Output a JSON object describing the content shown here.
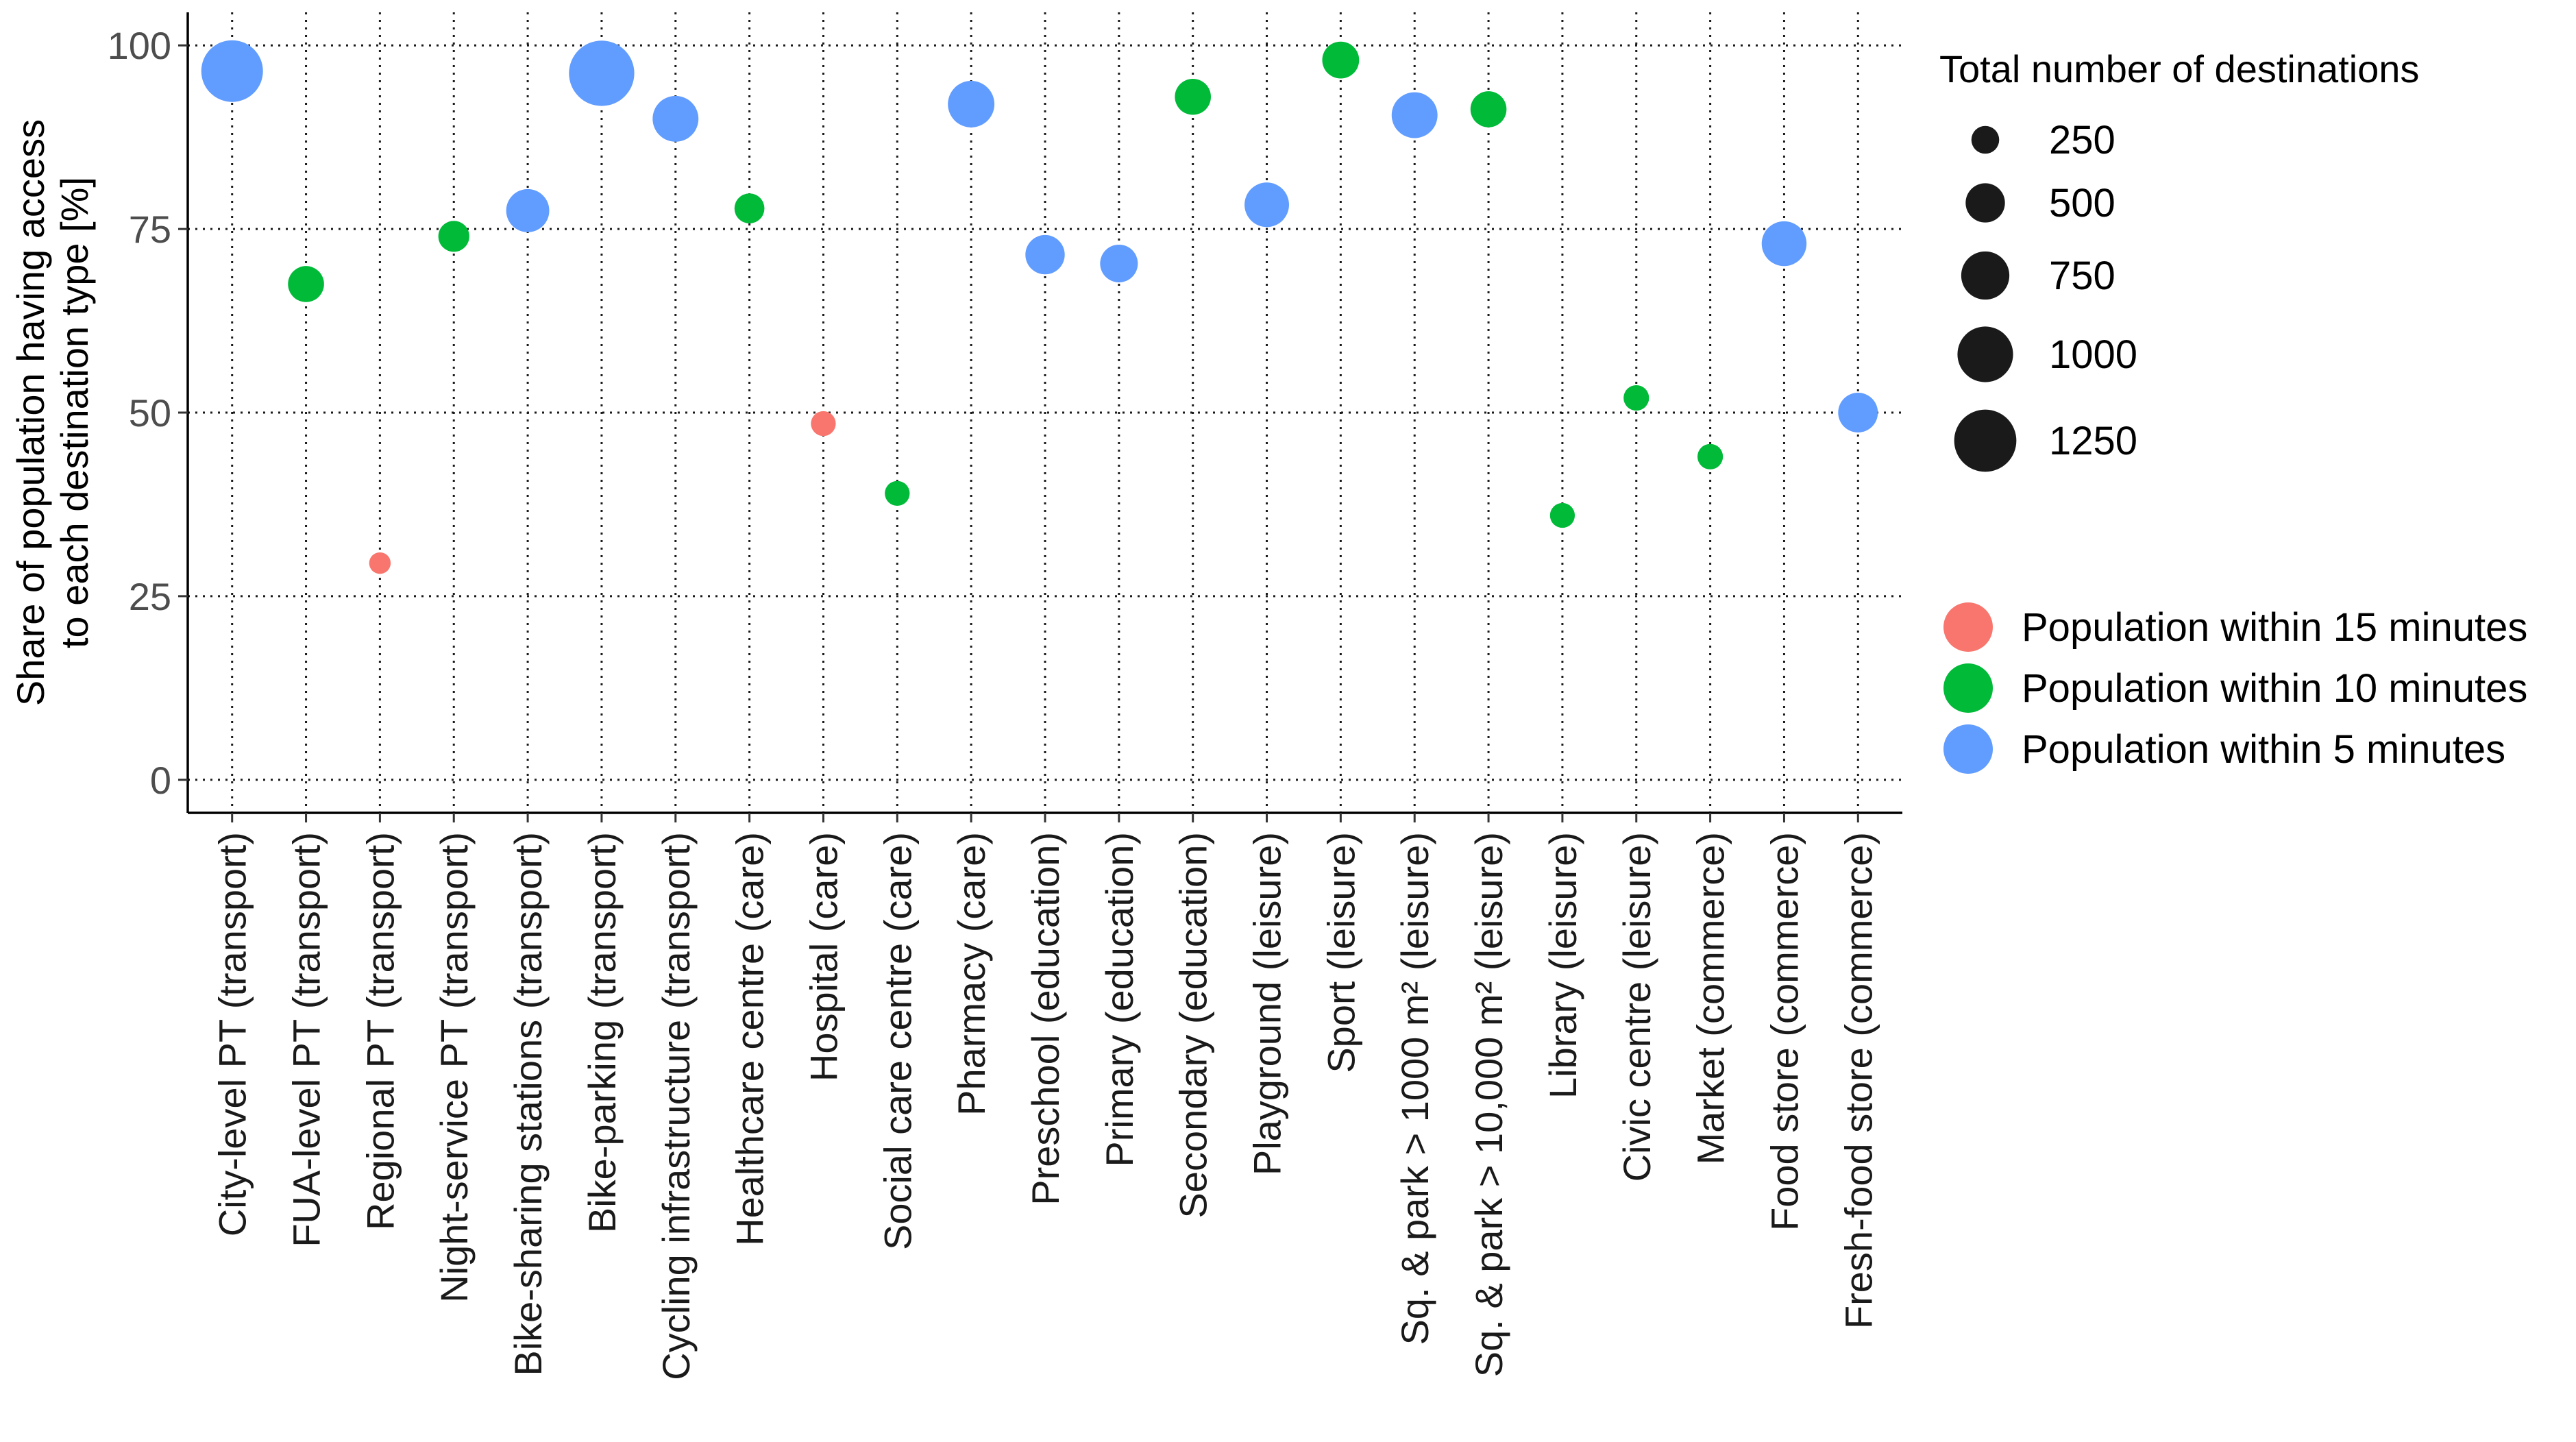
{
  "chart_data": {
    "type": "scatter",
    "title": "",
    "xlabel": "",
    "ylabel_lines": [
      "Share of population having access",
      "to each destination type [%]"
    ],
    "ylim": [
      -4.5,
      104.5
    ],
    "y_ticks": [
      0,
      25,
      50,
      75,
      100
    ],
    "grid": true,
    "categories": [
      "City-level PT (transport)",
      "FUA-level PT (transport)",
      "Regional PT (transport)",
      "Night-service PT (transport)",
      "Bike-sharing stations (transport)",
      "Bike-parking (transport)",
      "Cycling infrastructure (transport)",
      "Healthcare centre (care)",
      "Hospital (care)",
      "Social care centre (care)",
      "Pharmacy (care)",
      "Preschool (education)",
      "Primary (education)",
      "Secondary (education)",
      "Playground (leisure)",
      "Sport (leisure)",
      "Sq. & park > 1000 m² (leisure)",
      "Sq. & park > 10,000 m² (leisure)",
      "Library (leisure)",
      "Civic centre (leisure)",
      "Market (commerce)",
      "Food store (commerce)",
      "Fresh-food store (commerce)"
    ],
    "series": [
      {
        "name": "Population within 15 minutes",
        "color": "#F8766D"
      },
      {
        "name": "Population within 10 minutes",
        "color": "#00BA38"
      },
      {
        "name": "Population within 5 minutes",
        "color": "#619CFF"
      }
    ],
    "points": [
      {
        "category": "City-level PT (transport)",
        "series": "Population within 5 minutes",
        "y": 96.5,
        "size": 1230
      },
      {
        "category": "FUA-level PT (transport)",
        "series": "Population within 10 minutes",
        "y": 67.5,
        "size": 420
      },
      {
        "category": "Regional PT (transport)",
        "series": "Population within 15 minutes",
        "y": 29.5,
        "size": 150
      },
      {
        "category": "Night-service PT (transport)",
        "series": "Population within 10 minutes",
        "y": 74,
        "size": 310
      },
      {
        "category": "Bike-sharing stations (transport)",
        "series": "Population within 5 minutes",
        "y": 77.5,
        "size": 600
      },
      {
        "category": "Bike-parking (transport)",
        "series": "Population within 5 minutes",
        "y": 96.2,
        "size": 1380
      },
      {
        "category": "Cycling infrastructure (transport)",
        "series": "Population within 5 minutes",
        "y": 90,
        "size": 680
      },
      {
        "category": "Healthcare centre (care)",
        "series": "Population within 10 minutes",
        "y": 77.8,
        "size": 290
      },
      {
        "category": "Hospital (care)",
        "series": "Population within 15 minutes",
        "y": 48.5,
        "size": 200
      },
      {
        "category": "Social care centre (care)",
        "series": "Population within 10 minutes",
        "y": 39,
        "size": 200
      },
      {
        "category": "Pharmacy (care)",
        "series": "Population within 5 minutes",
        "y": 92,
        "size": 700
      },
      {
        "category": "Preschool (education)",
        "series": "Population within 5 minutes",
        "y": 71.5,
        "size": 500
      },
      {
        "category": "Primary (education)",
        "series": "Population within 5 minutes",
        "y": 70.3,
        "size": 460
      },
      {
        "category": "Secondary (education)",
        "series": "Population within 10 minutes",
        "y": 93,
        "size": 420
      },
      {
        "category": "Playground (leisure)",
        "series": "Population within 5 minutes",
        "y": 78.3,
        "size": 640
      },
      {
        "category": "Sport (leisure)",
        "series": "Population within 10 minutes",
        "y": 98,
        "size": 440
      },
      {
        "category": "Sq. & park > 1000 m² (leisure)",
        "series": "Population within 5 minutes",
        "y": 90.5,
        "size": 680
      },
      {
        "category": "Sq. & park > 10,000 m² (leisure)",
        "series": "Population within 10 minutes",
        "y": 91.3,
        "size": 420
      },
      {
        "category": "Library (leisure)",
        "series": "Population within 10 minutes",
        "y": 36,
        "size": 200
      },
      {
        "category": "Civic centre (leisure)",
        "series": "Population within 10 minutes",
        "y": 52,
        "size": 210
      },
      {
        "category": "Market (commerce)",
        "series": "Population within 10 minutes",
        "y": 44,
        "size": 210
      },
      {
        "category": "Food store (commerce)",
        "series": "Population within 5 minutes",
        "y": 73,
        "size": 650
      },
      {
        "category": "Fresh-food store (commerce)",
        "series": "Population within 5 minutes",
        "y": 50,
        "size": 510
      }
    ],
    "size_legend": {
      "title": "Total number of destinations",
      "values": [
        250,
        500,
        750,
        1000,
        1250
      ],
      "labels": [
        "250",
        "500",
        "750",
        "1000",
        "1250"
      ],
      "color": "#1a1a1a"
    },
    "size_range": [
      0,
      1400
    ]
  }
}
